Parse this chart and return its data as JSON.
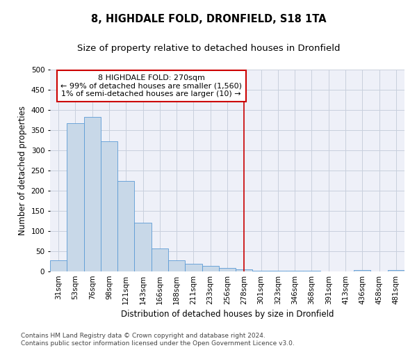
{
  "title": "8, HIGHDALE FOLD, DRONFIELD, S18 1TA",
  "subtitle": "Size of property relative to detached houses in Dronfield",
  "xlabel": "Distribution of detached houses by size in Dronfield",
  "ylabel": "Number of detached properties",
  "footer_line1": "Contains HM Land Registry data © Crown copyright and database right 2024.",
  "footer_line2": "Contains public sector information licensed under the Open Government Licence v3.0.",
  "bar_labels": [
    "31sqm",
    "53sqm",
    "76sqm",
    "98sqm",
    "121sqm",
    "143sqm",
    "166sqm",
    "188sqm",
    "211sqm",
    "233sqm",
    "256sqm",
    "278sqm",
    "301sqm",
    "323sqm",
    "346sqm",
    "368sqm",
    "391sqm",
    "413sqm",
    "436sqm",
    "458sqm",
    "481sqm"
  ],
  "bar_values": [
    27,
    368,
    383,
    323,
    225,
    120,
    57,
    27,
    19,
    14,
    8,
    5,
    2,
    1,
    1,
    1,
    0,
    0,
    3,
    0,
    3
  ],
  "bar_color": "#c8d8e8",
  "bar_edge_color": "#5b9bd5",
  "grid_color": "#c8d0dd",
  "bg_color": "#eef0f8",
  "vline_x_index": 11,
  "vline_color": "#cc0000",
  "annotation_text": "8 HIGHDALE FOLD: 270sqm\n← 99% of detached houses are smaller (1,560)\n1% of semi-detached houses are larger (10) →",
  "annotation_box_color": "#cc0000",
  "annotation_text_color": "#000000",
  "ylim": [
    0,
    500
  ],
  "yticks": [
    0,
    50,
    100,
    150,
    200,
    250,
    300,
    350,
    400,
    450,
    500
  ],
  "title_fontsize": 10.5,
  "subtitle_fontsize": 9.5,
  "axis_label_fontsize": 8.5,
  "tick_fontsize": 7.5,
  "footer_fontsize": 6.5,
  "annotation_fontsize": 8
}
